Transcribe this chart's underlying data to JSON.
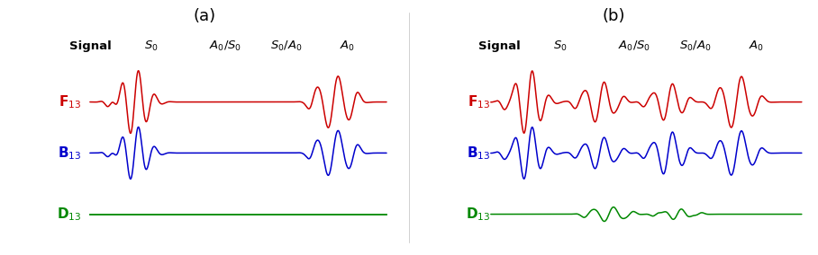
{
  "title_a": "(a)",
  "title_b": "(b)",
  "header_labels": [
    "Signal",
    "S$_0$",
    "A$_0$/S$_0$",
    "S$_0$/A$_0$",
    "A$_0$"
  ],
  "row_labels": [
    "F$_{13}$",
    "B$_{13}$",
    "D$_{13}$"
  ],
  "row_colors": [
    "#cc0000",
    "#0000cc",
    "#008800"
  ],
  "figsize": [
    9.08,
    2.84
  ],
  "dpi": 100
}
